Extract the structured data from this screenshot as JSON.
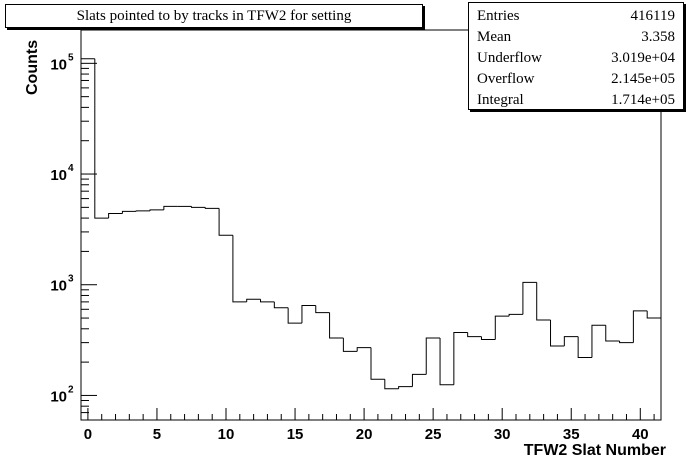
{
  "title": "Slats pointed to by tracks in TFW2 for setting",
  "stats": [
    {
      "label": "Entries",
      "value": "416119"
    },
    {
      "label": "Mean",
      "value": "3.358"
    },
    {
      "label": "Underflow",
      "value": "3.019e+04"
    },
    {
      "label": "Overflow",
      "value": "2.145e+05"
    },
    {
      "label": "Integral",
      "value": "1.714e+05"
    }
  ],
  "chart_data": {
    "type": "bar",
    "histogram": true,
    "log_y": true,
    "xlabel": "TFW2 Slat Number",
    "ylabel": "Counts",
    "xlim": [
      -0.5,
      41.5
    ],
    "ylim": [
      60,
      200000
    ],
    "x_ticks": [
      0,
      5,
      10,
      15,
      20,
      25,
      30,
      35,
      40
    ],
    "y_ticks": [
      {
        "value": 100,
        "label_base": "10",
        "label_exp": "2"
      },
      {
        "value": 1000,
        "label_base": "10",
        "label_exp": "3"
      },
      {
        "value": 10000,
        "label_base": "10",
        "label_exp": "4"
      },
      {
        "value": 100000,
        "label_base": "10",
        "label_exp": "5"
      }
    ],
    "categories": [
      0,
      1,
      2,
      3,
      4,
      5,
      6,
      7,
      8,
      9,
      10,
      11,
      12,
      13,
      14,
      15,
      16,
      17,
      18,
      19,
      20,
      21,
      22,
      23,
      24,
      25,
      26,
      27,
      28,
      29,
      30,
      31,
      32,
      33,
      34,
      35,
      36,
      37,
      38,
      39,
      40,
      41
    ],
    "values": [
      110000,
      4000,
      4400,
      4600,
      4650,
      4750,
      5100,
      5100,
      5000,
      4900,
      2800,
      700,
      740,
      700,
      620,
      450,
      650,
      560,
      330,
      250,
      270,
      140,
      115,
      120,
      155,
      330,
      125,
      370,
      340,
      320,
      520,
      540,
      1050,
      480,
      280,
      340,
      220,
      430,
      310,
      300,
      580,
      500
    ]
  }
}
